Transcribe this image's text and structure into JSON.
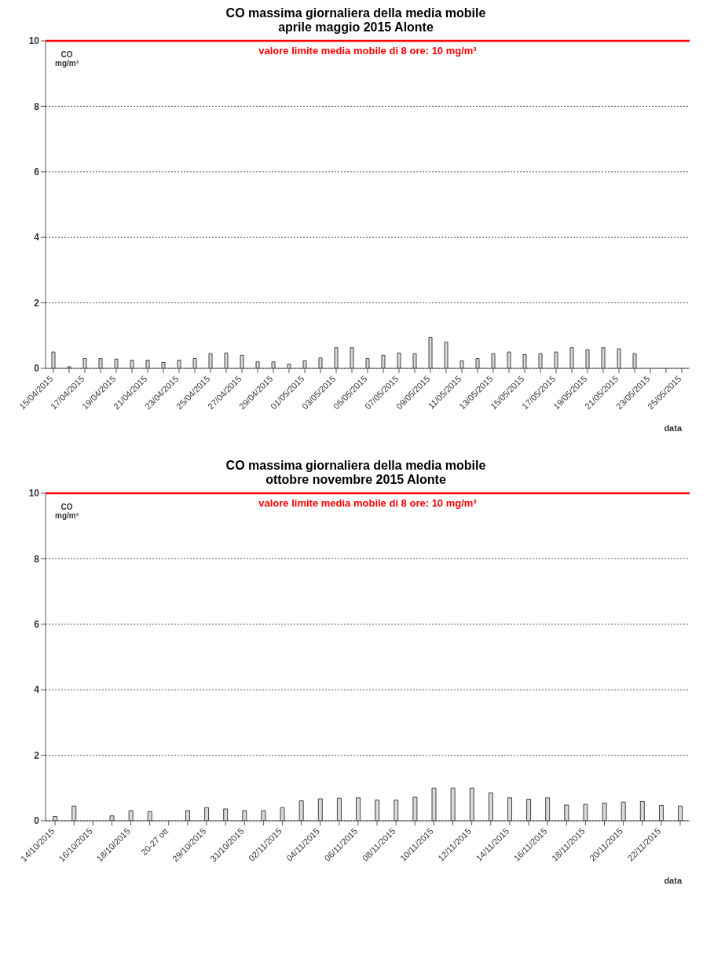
{
  "chart_data": [
    {
      "type": "bar",
      "title": "CO massima giornaliera della media mobile",
      "subtitle": "aprile maggio 2015 Alonte",
      "xlabel": "data",
      "ylabel": "CO\nmg/m³",
      "categories": [
        "15/04/2015",
        null,
        "17/04/2015",
        null,
        "19/04/2015",
        null,
        "21/04/2015",
        null,
        "23/04/2015",
        null,
        "25/04/2015",
        null,
        "27/04/2015",
        null,
        "29/04/2015",
        null,
        "01/05/2015",
        null,
        "03/05/2015",
        null,
        "05/05/2015",
        null,
        "07/05/2015",
        null,
        "09/05/2015",
        null,
        "11/05/2015",
        null,
        "13/05/2015",
        null,
        "15/05/2015",
        null,
        "17/05/2015",
        null,
        "19/05/2015",
        null,
        "21/05/2015",
        null,
        "23/05/2015",
        null,
        "25/05/2015"
      ],
      "values": [
        0.5,
        0.05,
        0.3,
        0.3,
        0.28,
        0.25,
        0.25,
        0.18,
        0.25,
        0.3,
        0.45,
        0.47,
        0.4,
        0.2,
        0.2,
        0.13,
        0.23,
        0.32,
        0.63,
        0.63,
        0.3,
        0.4,
        0.47,
        0.45,
        0.95,
        0.8,
        0.23,
        0.3,
        0.45,
        0.5,
        0.42,
        0.45,
        0.5,
        0.63,
        0.57,
        0.63,
        0.6,
        0.45,
        null,
        null,
        null
      ],
      "color": "#d9d9d9",
      "ylim": [
        0,
        10
      ],
      "yticks": [
        0,
        2,
        4,
        6,
        8,
        10
      ],
      "grid": "y",
      "ref_lines": [
        {
          "axis": "y",
          "value": 10,
          "label": "valore limite media mobile di 8 ore: 10 mg/m³",
          "color": "#ff0000"
        }
      ]
    },
    {
      "type": "bar",
      "title": "CO massima giornaliera della media mobile",
      "subtitle": "ottobre novembre 2015 Alonte",
      "xlabel": "data",
      "ylabel": "CO\nmg/m³",
      "categories": [
        "14/10/2015",
        null,
        "16/10/2015",
        null,
        "18/10/2015",
        null,
        "20-27 ott",
        null,
        "29/10/2015",
        null,
        "31/10/2015",
        null,
        "02/11/2015",
        null,
        "04/11/2015",
        null,
        "06/11/2015",
        null,
        "08/11/2015",
        null,
        "10/11/2015",
        null,
        "12/11/2015",
        null,
        "14/11/2015",
        null,
        "16/11/2015",
        null,
        "18/11/2015",
        null,
        "20/11/2015",
        null,
        "22/11/2015",
        null
      ],
      "values": [
        0.13,
        0.45,
        null,
        0.15,
        0.31,
        0.28,
        null,
        0.31,
        0.4,
        0.36,
        0.31,
        0.31,
        0.4,
        0.61,
        0.67,
        0.69,
        0.7,
        0.63,
        0.63,
        0.72,
        1.0,
        1.0,
        1.0,
        0.85,
        0.7,
        0.66,
        0.7,
        0.48,
        0.5,
        0.54,
        0.57,
        0.59,
        0.47,
        0.45
      ],
      "color": "#d9d9d9",
      "ylim": [
        0,
        10
      ],
      "yticks": [
        0,
        2,
        4,
        6,
        8,
        10
      ],
      "grid": "y",
      "ref_lines": [
        {
          "axis": "y",
          "value": 10,
          "label": "valore limite media mobile di 8 ore: 10 mg/m³",
          "color": "#ff0000"
        }
      ]
    }
  ]
}
